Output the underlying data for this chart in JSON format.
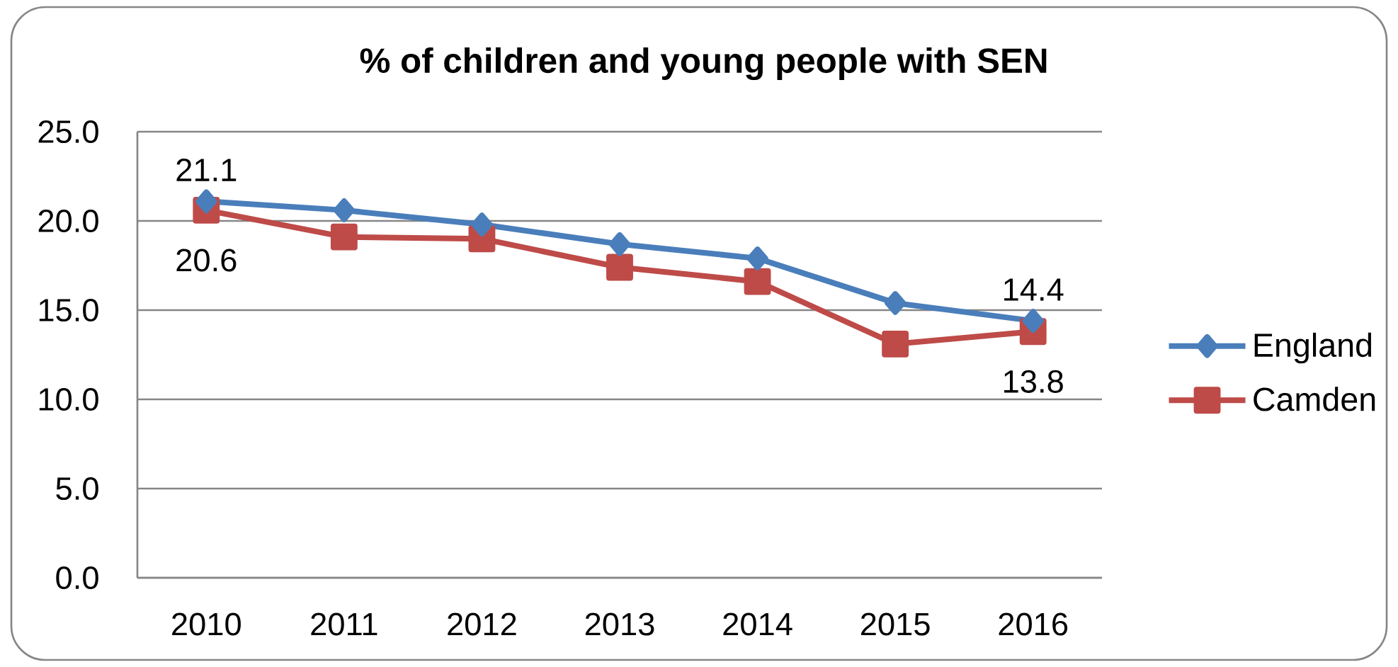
{
  "chart_data": {
    "type": "line",
    "title": "% of children and young people with SEN",
    "categories": [
      "2010",
      "2011",
      "2012",
      "2013",
      "2014",
      "2015",
      "2016"
    ],
    "series": [
      {
        "name": "England",
        "color": "#4a7ebb",
        "marker": "diamond",
        "values": [
          21.1,
          20.6,
          19.8,
          18.7,
          17.9,
          15.4,
          14.4
        ],
        "value_labels": [
          "21.1",
          null,
          null,
          null,
          null,
          null,
          "14.4"
        ]
      },
      {
        "name": "Camden",
        "color": "#be4b48",
        "marker": "square",
        "values": [
          20.6,
          19.1,
          19.0,
          17.4,
          16.6,
          13.1,
          13.8
        ],
        "value_labels": [
          "20.6",
          null,
          null,
          null,
          null,
          null,
          "13.8"
        ]
      }
    ],
    "ylim": [
      0,
      25
    ],
    "yticks": [
      {
        "value": 0,
        "label": "0.0"
      },
      {
        "value": 5,
        "label": "5.0"
      },
      {
        "value": 10,
        "label": "10.0"
      },
      {
        "value": 15,
        "label": "15.0"
      },
      {
        "value": 20,
        "label": "20.0"
      },
      {
        "value": 25,
        "label": "25.0"
      }
    ],
    "grid": "y",
    "legend": "right",
    "line_style": "solid"
  }
}
